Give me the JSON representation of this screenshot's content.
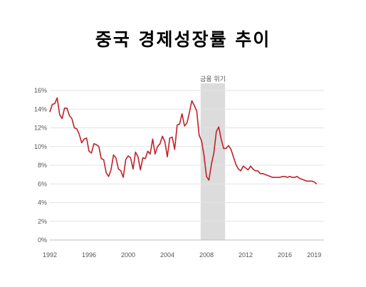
{
  "title": "중국 경제성장률 추이",
  "chart_data": {
    "type": "line",
    "title": "중국 경제성장률 추이",
    "xlabel": "",
    "ylabel": "",
    "xlim": [
      1992,
      2020
    ],
    "ylim": [
      0,
      16
    ],
    "y_ticks": [
      0,
      2,
      4,
      6,
      8,
      10,
      12,
      14,
      16
    ],
    "y_tick_labels": [
      "0%",
      "2%",
      "4%",
      "6%",
      "8%",
      "10%",
      "12%",
      "14%",
      "16%"
    ],
    "x_ticks": [
      1992,
      1996,
      2000,
      2004,
      2008,
      2012,
      2016,
      2019
    ],
    "x_tick_labels": [
      "1992",
      "1996",
      "2000",
      "2004",
      "2008",
      "2012",
      "2016",
      "2019"
    ],
    "grid": "horizontal",
    "line_color": "#c0212b",
    "shaded_regions": [
      {
        "label": "금융 위기",
        "x_start": 2007.4,
        "x_end": 2009.9,
        "color": "#dcdcdc"
      }
    ],
    "series": [
      {
        "x": [
          1992.0,
          1992.25,
          1992.5,
          1992.75,
          1993.0,
          1993.25,
          1993.5,
          1993.75,
          1994.0,
          1994.25,
          1994.5,
          1994.75,
          1995.0,
          1995.25,
          1995.5,
          1995.75,
          1996.0,
          1996.25,
          1996.5,
          1996.75,
          1997.0,
          1997.25,
          1997.5,
          1997.75,
          1998.0,
          1998.25,
          1998.5,
          1998.75,
          1999.0,
          1999.25,
          1999.5,
          1999.75,
          2000.0,
          2000.25,
          2000.5,
          2000.75,
          2001.0,
          2001.25,
          2001.5,
          2001.75,
          2002.0,
          2002.25,
          2002.5,
          2002.75,
          2003.0,
          2003.25,
          2003.5,
          2003.75,
          2004.0,
          2004.25,
          2004.5,
          2004.75,
          2005.0,
          2005.25,
          2005.5,
          2005.75,
          2006.0,
          2006.25,
          2006.5,
          2006.75,
          2007.0,
          2007.25,
          2007.5,
          2007.75,
          2008.0,
          2008.25,
          2008.5,
          2008.75,
          2009.0,
          2009.25,
          2009.5,
          2009.75,
          2010.0,
          2010.25,
          2010.5,
          2010.75,
          2011.0,
          2011.25,
          2011.5,
          2011.75,
          2012.0,
          2012.25,
          2012.5,
          2012.75,
          2013.0,
          2013.25,
          2013.5,
          2013.75,
          2014.0,
          2014.25,
          2014.5,
          2014.75,
          2015.0,
          2015.25,
          2015.5,
          2015.75,
          2016.0,
          2016.25,
          2016.5,
          2016.75,
          2017.0,
          2017.25,
          2017.5,
          2017.75,
          2018.0,
          2018.25,
          2018.5,
          2018.75,
          2019.0,
          2019.25
        ],
        "y": [
          13.7,
          14.5,
          14.6,
          15.2,
          13.4,
          13.0,
          14.1,
          14.1,
          13.3,
          13.0,
          12.0,
          11.9,
          11.3,
          10.4,
          10.8,
          10.9,
          9.5,
          9.3,
          10.3,
          10.2,
          10.0,
          8.7,
          8.6,
          7.2,
          6.8,
          7.5,
          9.1,
          8.8,
          7.6,
          7.4,
          6.7,
          8.6,
          9.0,
          8.8,
          7.6,
          9.4,
          8.9,
          7.5,
          8.8,
          8.7,
          9.5,
          9.2,
          10.8,
          9.2,
          10.0,
          10.3,
          11.1,
          10.5,
          8.9,
          10.9,
          11.0,
          9.7,
          12.3,
          12.4,
          13.5,
          12.2,
          12.5,
          13.6,
          14.9,
          14.4,
          13.8,
          11.2,
          10.6,
          9.0,
          6.8,
          6.4,
          8.1,
          9.3,
          11.6,
          12.1,
          10.8,
          9.8,
          9.8,
          10.1,
          9.7,
          8.9,
          8.1,
          7.6,
          7.4,
          7.9,
          7.7,
          7.5,
          7.9,
          7.6,
          7.4,
          7.4,
          7.1,
          7.1,
          7.0,
          6.9,
          6.8,
          6.7,
          6.7,
          6.7,
          6.7,
          6.8,
          6.8,
          6.7,
          6.8,
          6.7,
          6.7,
          6.8,
          6.6,
          6.5,
          6.4,
          6.3,
          6.3,
          6.3,
          6.2,
          6.0
        ]
      }
    ]
  }
}
